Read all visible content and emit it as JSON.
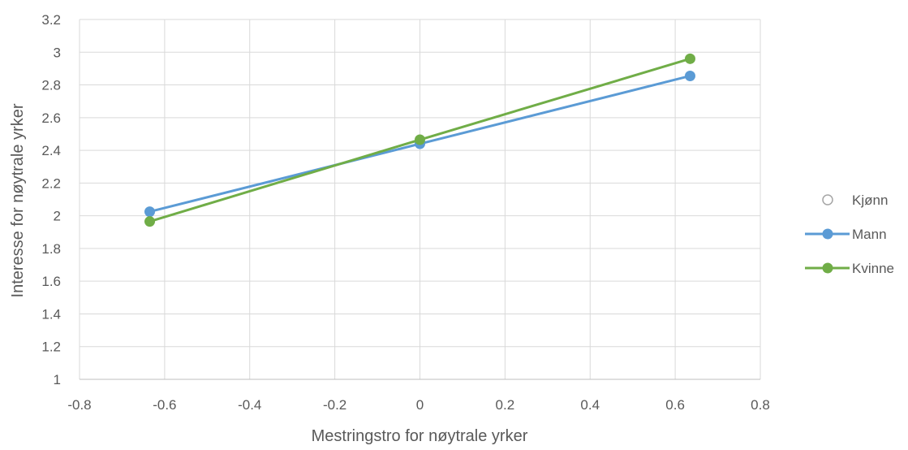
{
  "chart_data": {
    "type": "scatter",
    "xlabel": "Mestringstro for nøytrale yrker",
    "ylabel": "Interesse for nøytrale yrker",
    "xlim": [
      -0.8,
      0.8
    ],
    "ylim": [
      1,
      3.2
    ],
    "xticks": [
      -0.8,
      -0.6,
      -0.4,
      -0.2,
      0,
      0.2,
      0.4,
      0.6,
      0.8
    ],
    "yticks": [
      1,
      1.2,
      1.4,
      1.6,
      1.8,
      2,
      2.2,
      2.4,
      2.6,
      2.8,
      3,
      3.2
    ],
    "xtick_labels": [
      "-0.8",
      "-0.6",
      "-0.4",
      "-0.2",
      "0",
      "0.2",
      "0.4",
      "0.6",
      "0.8"
    ],
    "ytick_labels": [
      "1",
      "1.2",
      "1.4",
      "1.6",
      "1.8",
      "2",
      "2.2",
      "2.4",
      "2.6",
      "2.8",
      "3",
      "3.2"
    ],
    "grid": true,
    "legend_position": "right",
    "series": [
      {
        "name": "Kjønn",
        "marker": "hollow-circle",
        "color": "#a5a5a5",
        "points": []
      },
      {
        "name": "Mann",
        "marker": "circle",
        "color": "#5b9bd5",
        "points": [
          [
            -0.635,
            2.025
          ],
          [
            0,
            2.44
          ],
          [
            0.635,
            2.855
          ]
        ]
      },
      {
        "name": "Kvinne",
        "marker": "circle",
        "color": "#70ad47",
        "points": [
          [
            -0.635,
            1.965
          ],
          [
            0,
            2.465
          ],
          [
            0.635,
            2.96
          ]
        ]
      }
    ]
  }
}
